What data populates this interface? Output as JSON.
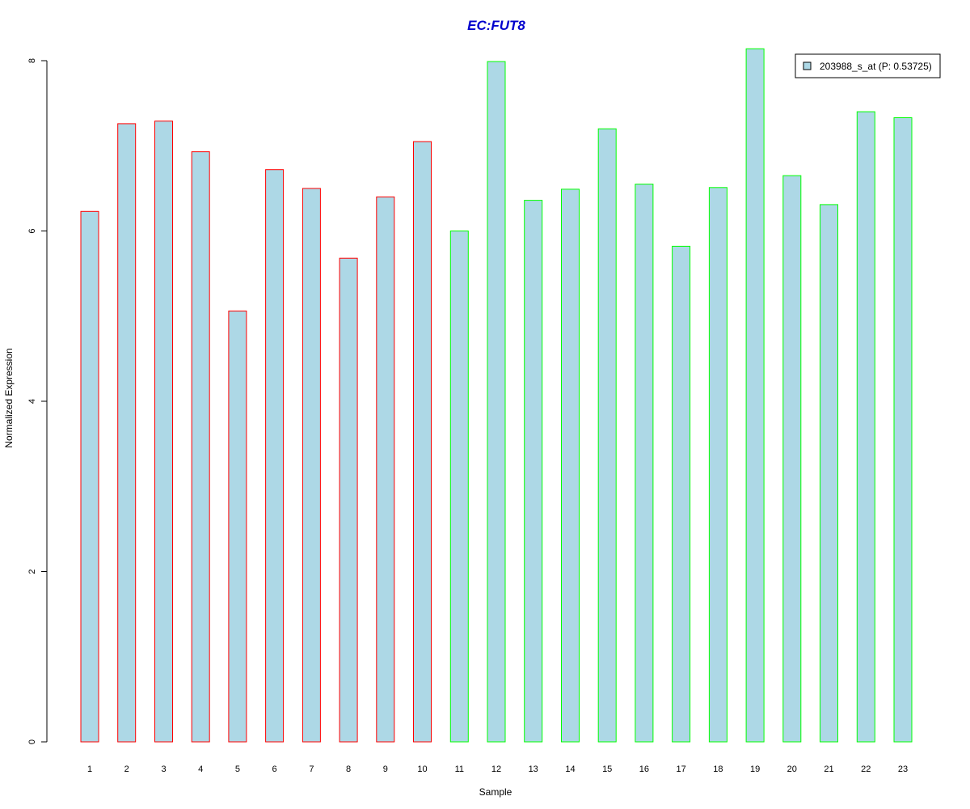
{
  "chart_data": {
    "type": "bar",
    "title": "EC:FUT8",
    "xlabel": "Sample",
    "ylabel": "Normalized Expression",
    "categories": [
      "1",
      "2",
      "3",
      "4",
      "5",
      "6",
      "7",
      "8",
      "9",
      "10",
      "11",
      "12",
      "13",
      "14",
      "15",
      "16",
      "17",
      "18",
      "19",
      "20",
      "21",
      "22",
      "23"
    ],
    "series": [
      {
        "name": "203988_s_at (P: 0.53725)",
        "values": [
          6.23,
          7.26,
          7.29,
          6.93,
          5.06,
          6.72,
          6.5,
          5.68,
          6.4,
          7.05,
          6.0,
          7.99,
          6.36,
          6.49,
          7.2,
          6.55,
          5.82,
          6.51,
          8.14,
          6.65,
          6.31,
          7.4,
          7.33
        ]
      }
    ],
    "groups": [
      1,
      1,
      1,
      1,
      1,
      1,
      1,
      1,
      1,
      1,
      2,
      2,
      2,
      2,
      2,
      2,
      2,
      2,
      2,
      2,
      2,
      2,
      2
    ],
    "ylim": [
      0,
      8
    ],
    "yticks": [
      0,
      2,
      4,
      6,
      8
    ],
    "legend_position": "top-right",
    "grid": false,
    "colors": {
      "fill": "#add8e6",
      "group1_border": "#ff0000",
      "group2_border": "#00ff00",
      "title": "#0000cd",
      "axis": "#000000"
    }
  }
}
